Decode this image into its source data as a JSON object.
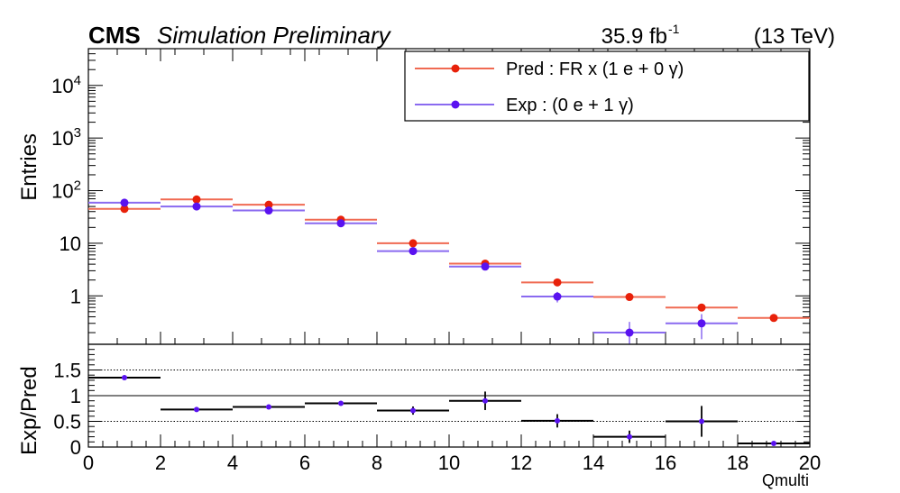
{
  "header": {
    "cms": "CMS",
    "simulation": "Simulation Preliminary",
    "lumi_value": "35.9 fb",
    "lumi_exp": "-1",
    "energy": "(13 TeV)"
  },
  "colors": {
    "pred": "#e8210a",
    "pred_line": "#f06a52",
    "exp": "#5a12f0",
    "exp_line": "#8a6af0",
    "ratio": "#000000"
  },
  "chart_data": [
    {
      "type": "line",
      "subtype": "histogram",
      "ylabel": "Entries",
      "yscale": "log",
      "ylim": [
        0.12,
        50000
      ],
      "xlim": [
        0,
        20
      ],
      "yticks": [
        {
          "v": 10000,
          "base": "10",
          "exp": "4"
        },
        {
          "v": 1000,
          "base": "10",
          "exp": "3"
        },
        {
          "v": 100,
          "base": "10",
          "exp": "2"
        },
        {
          "v": 10,
          "base": "10",
          "exp": ""
        },
        {
          "v": 1,
          "base": "1",
          "exp": ""
        }
      ],
      "x": [
        1,
        3,
        5,
        7,
        9,
        11,
        13,
        15,
        17,
        19
      ],
      "series": [
        {
          "name": "Pred : FR x (1 e + 0 γ)",
          "key": "pred",
          "values": [
            45,
            68,
            54,
            28,
            10,
            4.1,
            1.8,
            0.95,
            0.6,
            0.38
          ],
          "errors": [
            0,
            0,
            0,
            0,
            0,
            0,
            0,
            0,
            0,
            0
          ]
        },
        {
          "name": "Exp : (0 e + 1 γ)",
          "key": "exp",
          "values": [
            59,
            50,
            42,
            24,
            7.1,
            3.6,
            0.97,
            0.2,
            0.3,
            null
          ],
          "errors": [
            0,
            0,
            0,
            0,
            0.5,
            0.4,
            0.22,
            0.12,
            0.15,
            null
          ]
        }
      ],
      "legend": [
        {
          "label": "Pred : FR x (1 e + 0 γ)",
          "key": "pred"
        },
        {
          "label": "Exp : (0 e + 1 γ)",
          "key": "exp"
        }
      ],
      "legend_position": "top-right",
      "grid": false
    },
    {
      "type": "scatter",
      "ylabel": "Exp/Pred",
      "xlabel": "Qmulti",
      "xlim": [
        0,
        20
      ],
      "ylim": [
        0,
        2
      ],
      "yticks": [
        "0",
        "0.5",
        "1",
        "1.5"
      ],
      "yticks_values": [
        0,
        0.5,
        1,
        1.5
      ],
      "xticks": [
        "0",
        "2",
        "4",
        "6",
        "8",
        "10",
        "12",
        "14",
        "16",
        "18",
        "20"
      ],
      "xticks_values": [
        0,
        2,
        4,
        6,
        8,
        10,
        12,
        14,
        16,
        18,
        20
      ],
      "reference_lines": [
        0.5,
        1,
        1.5
      ],
      "x": [
        1,
        3,
        5,
        7,
        9,
        11,
        13,
        15,
        17,
        19
      ],
      "values": [
        1.35,
        0.73,
        0.78,
        0.85,
        0.71,
        0.9,
        0.51,
        0.2,
        0.5,
        0.07
      ],
      "errors": [
        0.04,
        0.03,
        0.03,
        0.04,
        0.08,
        0.18,
        0.13,
        0.12,
        0.3,
        0.03
      ]
    }
  ]
}
